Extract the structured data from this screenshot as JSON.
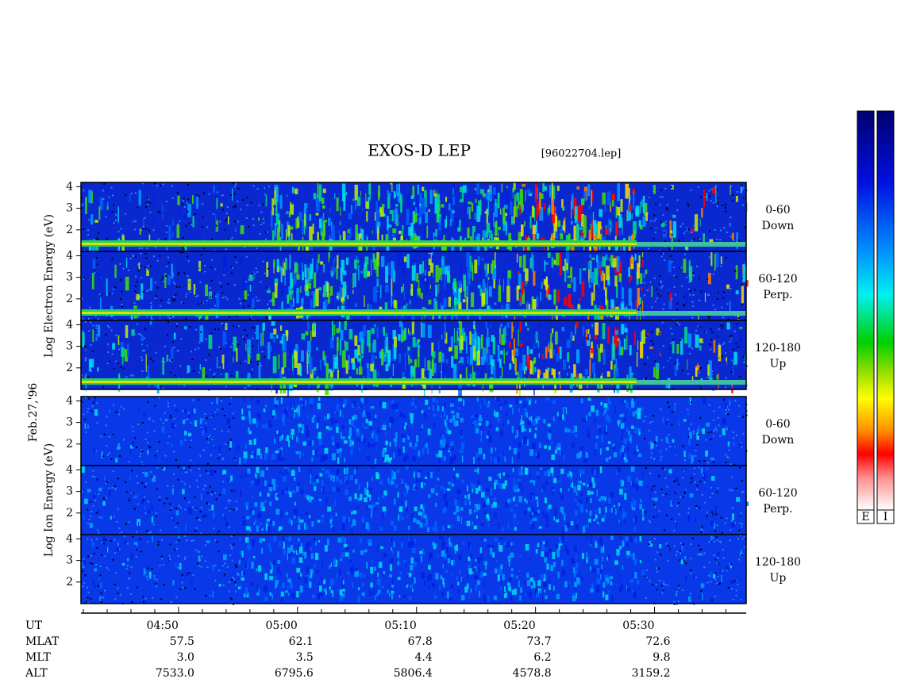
{
  "chart_data": {
    "type": "spectrogram",
    "title": "EXOS-D LEP",
    "file": "[96022704.lep]",
    "date": "Feb.27,'96",
    "ylim": [
      1,
      4.2
    ],
    "yticks": [
      2,
      3,
      4
    ],
    "groups": [
      {
        "ylabel": "Log Electron Energy (eV)",
        "panels": [
          {
            "angle": "0-60",
            "direction": "Down"
          },
          {
            "angle": "60-120",
            "direction": "Perp."
          },
          {
            "angle": "120-180",
            "direction": "Up"
          }
        ]
      },
      {
        "ylabel": "Log Ion Energy (eV)",
        "panels": [
          {
            "angle": "0-60",
            "direction": "Down"
          },
          {
            "angle": "60-120",
            "direction": "Perp."
          },
          {
            "angle": "120-180",
            "direction": "Up"
          }
        ]
      }
    ],
    "xlim": [
      281.8,
      337.7
    ],
    "xticks": [
      {
        "value": 290,
        "label": "04:50"
      },
      {
        "value": 300,
        "label": "05:00"
      },
      {
        "value": 310,
        "label": "05:10"
      },
      {
        "value": 320,
        "label": "05:20"
      },
      {
        "value": 330,
        "label": "05:30"
      }
    ],
    "xminor": [
      282,
      284,
      286,
      288,
      292,
      294,
      296,
      298,
      302,
      304,
      306,
      308,
      312,
      314,
      316,
      318,
      322,
      324,
      326,
      328,
      332,
      334,
      336
    ],
    "ephemeris": [
      {
        "name": "UT",
        "values": []
      },
      {
        "name": "MLAT",
        "values": [
          "57.5",
          "62.1",
          "67.8",
          "73.7",
          "72.6"
        ]
      },
      {
        "name": "MLT",
        "values": [
          "3.0",
          "3.5",
          "4.4",
          "6.2",
          "9.8"
        ]
      },
      {
        "name": "ALT",
        "values": [
          "7533.0",
          "6795.6",
          "5806.4",
          "4578.8",
          "3159.2"
        ]
      }
    ],
    "colorbars": [
      "E",
      "I"
    ]
  }
}
